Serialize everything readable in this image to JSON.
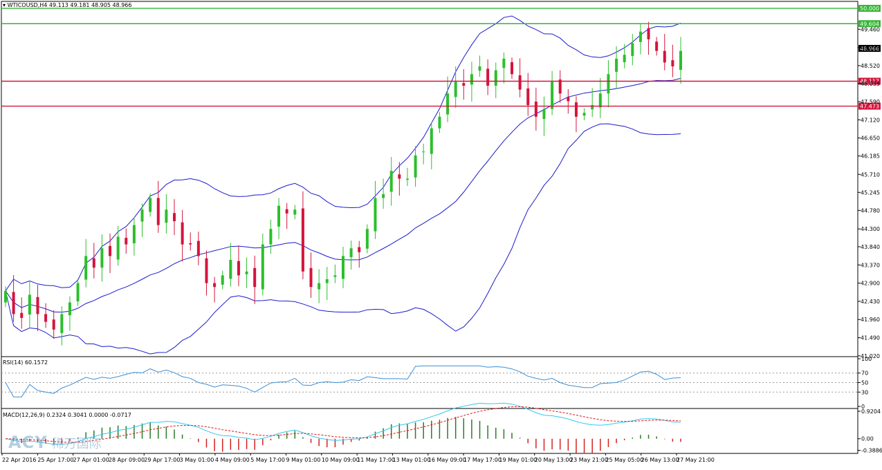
{
  "symbol_header": "WTICOUSD,H4  49.113 49.181 48.905 48.966",
  "rsi_header": "RSI(14) 60.1572",
  "macd_header": "MACD(12,26,9) 0.2324 0.3041 0.0000 -0.0717",
  "logo": {
    "brand": "ACY",
    "brand_cn": "稀万国际"
  },
  "colors": {
    "bull": "#2bbf2b",
    "bear": "#d4143c",
    "band": "#1a1acd",
    "support": "#d4143c",
    "resistance": "#33b533",
    "rsi": "#3a8fd6",
    "macd_line": "#2ec8ee",
    "signal": "#e01010"
  },
  "chart_data": {
    "type": "candlestick",
    "price_axis": {
      "range": [
        41.0,
        50.18
      ],
      "ticks": [
        "49.460",
        "48.990",
        "48.520",
        "48.055",
        "47.590",
        "47.120",
        "46.650",
        "46.185",
        "45.710",
        "45.245",
        "44.780",
        "44.300",
        "43.840",
        "43.370",
        "42.900",
        "42.430",
        "41.960",
        "41.490",
        "41.020"
      ],
      "current": "48.966"
    },
    "levels": [
      {
        "value": 50.0,
        "label": "50.000",
        "kind": "resistance"
      },
      {
        "value": 49.604,
        "label": "49.604",
        "kind": "resistance"
      },
      {
        "value": 48.117,
        "label": "48.117",
        "kind": "support"
      },
      {
        "value": 47.473,
        "label": "47.473",
        "kind": "support"
      }
    ],
    "x_labels": [
      "22 Apr 2016",
      "25 Apr 17:00",
      "27 Apr 01:00",
      "28 Apr 09:00",
      "29 Apr 17:00",
      "3 May 01:00",
      "4 May 09:00",
      "5 May 17:00",
      "9 May 01:00",
      "10 May 09:00",
      "11 May 17:00",
      "13 May 01:00",
      "16 May 09:00",
      "17 May 17:00",
      "19 May 01:00",
      "20 May 13:00",
      "23 May 21:00",
      "25 May 05:00",
      "26 May 13:00",
      "27 May 21:00"
    ],
    "closes": [
      42.7,
      42.1,
      42.0,
      42.6,
      42.1,
      41.9,
      41.7,
      42.1,
      42.4,
      42.9,
      43.6,
      43.3,
      43.8,
      43.6,
      44.1,
      43.9,
      44.4,
      44.8,
      45.1,
      44.4,
      44.8,
      44.5,
      43.9,
      43.9,
      43.6,
      42.9,
      42.8,
      43.1,
      43.5,
      43.1,
      43.2,
      42.8,
      43.9,
      44.3,
      44.9,
      44.7,
      44.8,
      43.2,
      42.8,
      42.9,
      43.0,
      43.1,
      43.6,
      43.8,
      43.7,
      44.3,
      45.1,
      45.2,
      45.8,
      45.6,
      45.6,
      46.2,
      46.3,
      46.9,
      47.2,
      47.8,
      48.1,
      48.0,
      48.3,
      48.5,
      48.0,
      48.4,
      48.7,
      48.3,
      47.9,
      47.5,
      47.2,
      47.4,
      48.1,
      47.8,
      47.6,
      47.2,
      47.3,
      47.5,
      47.8,
      48.3,
      48.7,
      48.8,
      49.1,
      49.4,
      49.2,
      48.9,
      48.6,
      48.5,
      48.9
    ],
    "rsi": {
      "value": 60.1572,
      "levels": [
        70,
        50,
        30
      ],
      "ticks": [
        "100",
        "70",
        "50",
        "30",
        "0"
      ]
    },
    "macd": {
      "fast": 12,
      "slow": 26,
      "signal": 9,
      "ticks": [
        "0.9204",
        "0.00",
        "-0.3886"
      ],
      "range": [
        -0.4,
        0.92
      ]
    }
  }
}
